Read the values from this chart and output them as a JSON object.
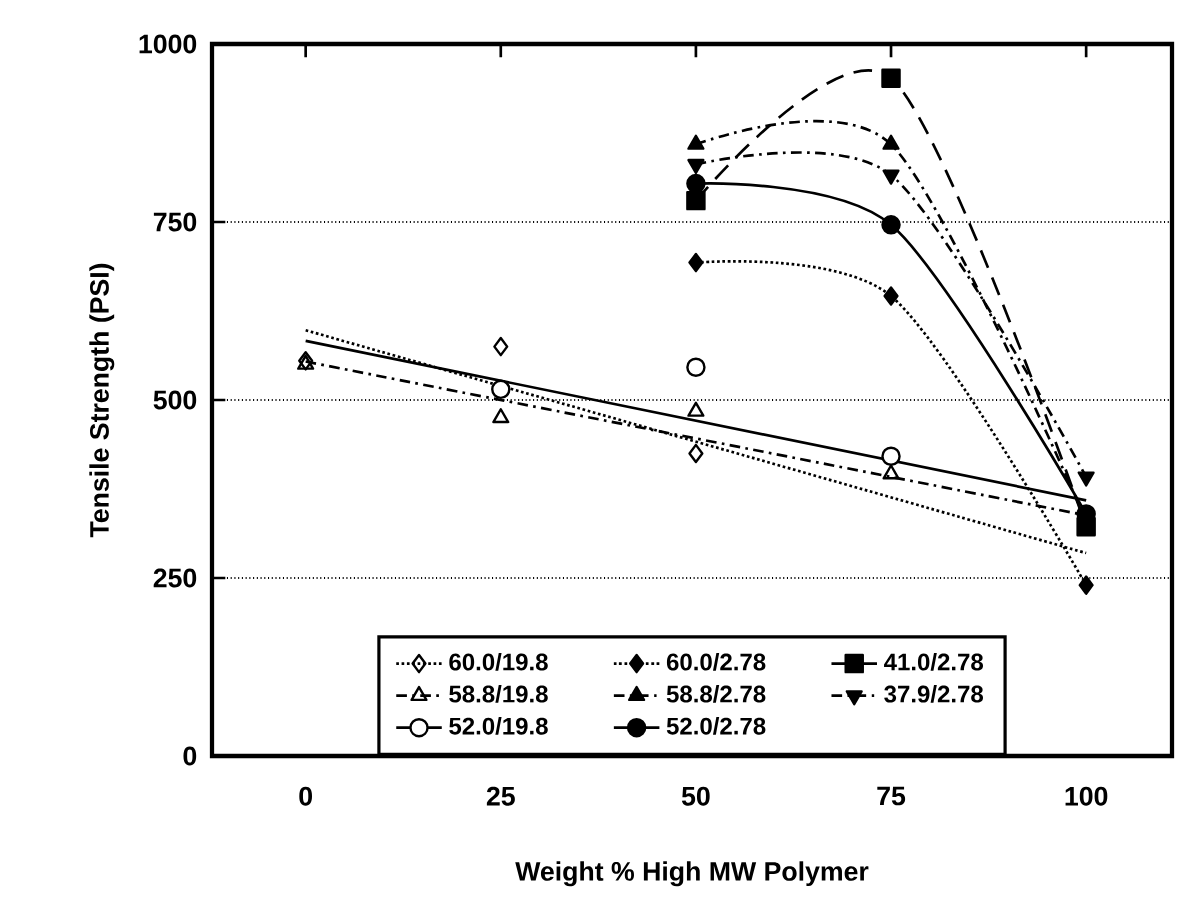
{
  "chart_data": {
    "type": "scatter",
    "xlabel": "Weight % High MW Polymer",
    "ylabel": "Tensile Strength (PSI)",
    "xlim": [
      -12,
      111
    ],
    "ylim": [
      0,
      1000
    ],
    "xticks": [
      0,
      25,
      50,
      75,
      100
    ],
    "yticks": [
      0,
      250,
      500,
      750,
      1000
    ],
    "grid": "y",
    "legend": "bottom",
    "series": [
      {
        "name": "60.0/19.8",
        "marker": "diamond",
        "line_style": "dotted",
        "color": "#000000",
        "x": [
          0,
          25,
          50
        ],
        "values": [
          555,
          575,
          425
        ]
      },
      {
        "name": "60.0/2.78",
        "type": "line",
        "marker": "diamond",
        "line_style": "dotted",
        "color": "#000000",
        "x": [
          50,
          75,
          100
        ],
        "values": [
          693,
          646,
          240
        ]
      },
      {
        "name": "41.0/2.78",
        "type": "line",
        "marker": "square",
        "line_style": "dashed",
        "color": "#000000",
        "x": [
          50,
          75,
          100
        ],
        "values": [
          780,
          952,
          322
        ]
      },
      {
        "name": "58.8/19.8",
        "marker": "triangle",
        "line_style": "dashdot",
        "color": "#000000",
        "x": [
          0,
          25,
          50,
          75
        ],
        "values": [
          550,
          475,
          484,
          396
        ]
      },
      {
        "name": "58.8/2.78",
        "type": "line",
        "marker": "triangle",
        "line_style": "dashdot",
        "color": "#000000",
        "x": [
          50,
          75,
          100
        ],
        "values": [
          859,
          859,
          330
        ]
      },
      {
        "name": "37.9/2.78",
        "type": "line",
        "marker": "triangle_down",
        "line_style": "dashdot",
        "color": "#000000",
        "x": [
          50,
          75,
          100
        ],
        "values": [
          831,
          816,
          392
        ]
      },
      {
        "name": "52.0/19.8",
        "marker": "circle",
        "line_style": "solid",
        "color": "#000000",
        "x": [
          25,
          50,
          75
        ],
        "values": [
          515,
          546,
          421
        ]
      },
      {
        "name": "52.0/2.78",
        "type": "line",
        "marker": "circle",
        "line_style": "solid",
        "color": "#000000",
        "x": [
          50,
          75,
          100
        ],
        "values": [
          804,
          746,
          340
        ]
      },
      {
        "type": "line",
        "marker": "none",
        "line_style": "dotted",
        "color": "#000000",
        "x": [
          0,
          100
        ],
        "values": [
          598,
          285
        ]
      },
      {
        "type": "line",
        "marker": "none",
        "line_style": "dashdot",
        "color": "#000000",
        "x": [
          0,
          100
        ],
        "values": [
          554,
          338
        ]
      },
      {
        "type": "line",
        "marker": "none",
        "line_style": "solid",
        "color": "#000000",
        "x": [
          0,
          100
        ],
        "values": [
          583,
          359
        ]
      }
    ]
  }
}
